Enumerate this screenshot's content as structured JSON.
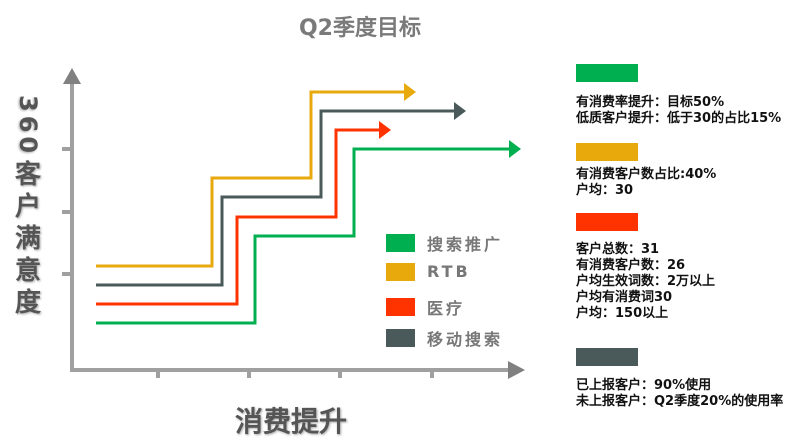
{
  "title": "Q2季度目标",
  "y_axis_label": {
    "number": "360",
    "text": "客户满意度"
  },
  "x_axis_label": "消费提升",
  "legend": [
    {
      "label": "搜索推广",
      "color": "#00b050"
    },
    {
      "label": "RTB",
      "color": "#e8a90c"
    },
    {
      "label": "医疗",
      "color": "#ff3300"
    },
    {
      "label": "移动搜索",
      "color": "#4a5a5a"
    }
  ],
  "notes": [
    {
      "color": "#00b050",
      "lines": [
        "有消费率提升：目标50%",
        "低质客户提升：低于30的占比15%"
      ]
    },
    {
      "color": "#e8a90c",
      "lines": [
        "有消费客户数占比:40%",
        "户均：30"
      ]
    },
    {
      "color": "#ff3300",
      "lines": [
        "客户总数：31",
        "有消费客户数：26",
        "户均生效词数：2万以上",
        "户均有消费词30",
        "户均：150以上"
      ]
    },
    {
      "color": "#4a5a5a",
      "lines": [
        "已上报客户：90%使用",
        "未上报客户：Q2季度20%的使用率"
      ]
    }
  ]
}
